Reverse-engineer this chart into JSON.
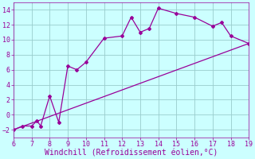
{
  "line1_x": [
    6,
    6.5,
    7,
    7.3,
    7.5,
    8,
    8.5,
    9,
    9.5,
    10,
    11,
    12,
    12.5,
    13,
    13.5,
    14,
    15,
    16,
    17,
    17.5,
    18,
    19
  ],
  "line1_y": [
    -2,
    -1.5,
    -1.5,
    -0.8,
    -1.5,
    2.5,
    -1,
    6.5,
    6,
    7,
    10.2,
    10.5,
    13,
    11,
    11.5,
    14.2,
    13.5,
    13,
    11.8,
    12.3,
    10.5,
    9.5
  ],
  "line2_x": [
    6,
    19
  ],
  "line2_y": [
    -2,
    9.5
  ],
  "line_color": "#990099",
  "bg_color": "#ccffff",
  "grid_color": "#99cccc",
  "xlabel": "Windchill (Refroidissement éolien,°C)",
  "xlim": [
    6,
    19
  ],
  "ylim": [
    -3,
    15
  ],
  "xticks": [
    6,
    7,
    8,
    9,
    10,
    11,
    12,
    13,
    14,
    15,
    16,
    17,
    18,
    19
  ],
  "yticks": [
    -2,
    0,
    2,
    4,
    6,
    8,
    10,
    12,
    14
  ],
  "marker": "D",
  "marker_size": 2.0,
  "line_width": 0.9,
  "xlabel_fontsize": 7.0,
  "tick_fontsize": 6.0
}
